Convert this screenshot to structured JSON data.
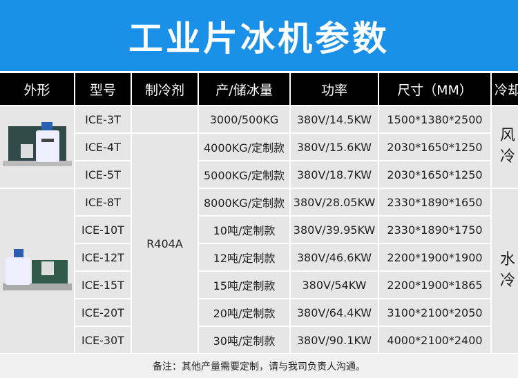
{
  "title": "工业片冰机参数",
  "colors": {
    "banner": "#1a90e8",
    "header": "#000000",
    "cell": "#e6e6e6"
  },
  "headers": [
    "外形",
    "型号",
    "制冷剂",
    "产/储冰量",
    "功率",
    "尺寸（MM）",
    "冷却"
  ],
  "refrigerant": "R404A",
  "cooling": {
    "air": [
      "风",
      "冷"
    ],
    "water": [
      "水",
      "冷"
    ]
  },
  "rows": [
    {
      "model": "ICE-3T",
      "capacity": "3000/500KG",
      "power": "380V/14.5KW",
      "size": "1500*1380*2500"
    },
    {
      "model": "ICE-4T",
      "capacity": "4000KG/定制款",
      "power": "380V/15.6KW",
      "size": "2030*1650*1250"
    },
    {
      "model": "ICE-5T",
      "capacity": "5000KG/定制款",
      "power": "380V/18.7KW",
      "size": "2030*1650*1250"
    },
    {
      "model": "ICE-8T",
      "capacity": "8000KG/定制款",
      "power": "380V/28.05KW",
      "size": "2330*1890*1650"
    },
    {
      "model": "ICE-10T",
      "capacity": "10吨/定制款",
      "power": "380V/39.95KW",
      "size": "2330*1890*1750"
    },
    {
      "model": "ICE-12T",
      "capacity": "12吨/定制款",
      "power": "380V/46.6KW",
      "size": "2200*1900*1900"
    },
    {
      "model": "ICE-15T",
      "capacity": "15吨/定制款",
      "power": "380V/54KW",
      "size": "2200*1900*1865"
    },
    {
      "model": "ICE-20T",
      "capacity": "20吨/定制款",
      "power": "380V/64.4KW",
      "size": "3100*2100*2050"
    },
    {
      "model": "ICE-30T",
      "capacity": "30吨/定制款",
      "power": "380V/90.1KW",
      "size": "4000*2100*2400"
    }
  ],
  "footer": "备注：其他产量需要定制，请与我司负责人沟通。"
}
